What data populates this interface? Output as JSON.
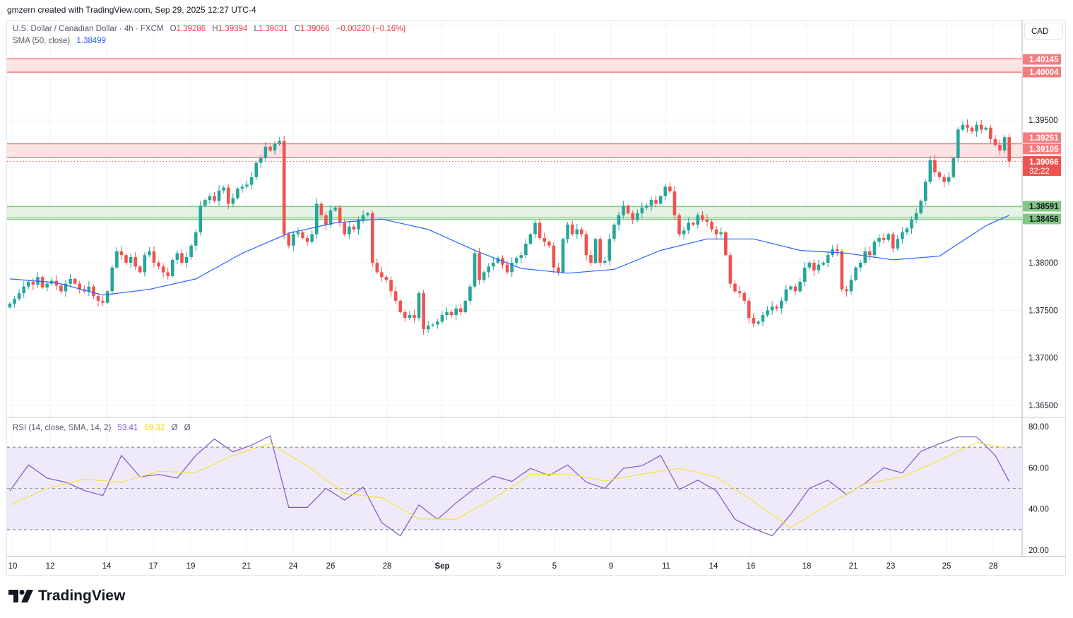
{
  "credit": "gmzern created with TradingView.com, Sep 29, 2025 12:27 UTC-4",
  "legend": {
    "symbol": "U.S. Dollar / Canadian Dollar · 4h · FXCM",
    "open_label": "O",
    "open": "1.39286",
    "high_label": "H",
    "high": "1.39394",
    "low_label": "L",
    "low": "1.39031",
    "close_label": "C",
    "close": "1.39066",
    "change": "−0.00220 (−0.16%)",
    "sma_label": "SMA (50, close)",
    "sma_value": "1.38499",
    "rsi_label": "RSI (14, close, SMA, 14, 2)",
    "rsi_value": "53.41",
    "rsi_sma_value": "69.32",
    "rsi_extra1": "Ø",
    "rsi_extra2": "Ø"
  },
  "currency_button": "CAD",
  "logo_text": "TradingView",
  "colors": {
    "up": "#26a69a",
    "down": "#ef5350",
    "sma": "#2962ff",
    "rsi": "#7e57c2",
    "rsi_sma": "#f5e23b",
    "resistance": "#f77c80",
    "support": "#81c784"
  },
  "chart_data": {
    "type": "candlestick",
    "ylim": [
      1.3625,
      1.4075
    ],
    "price_ticks": [
      "1.39500",
      "1.38000",
      "1.37500",
      "1.37000",
      "1.36500"
    ],
    "time_labels": [
      "10",
      "12",
      "14",
      "17",
      "19",
      "21",
      "24",
      "26",
      "28",
      "Sep",
      "3",
      "5",
      "9",
      "11",
      "14",
      "16",
      "18",
      "21",
      "23",
      "25",
      "28"
    ],
    "closes": [
      1.3757,
      1.3762,
      1.3768,
      1.3775,
      1.378,
      1.3777,
      1.3785,
      1.3774,
      1.3778,
      1.3781,
      1.3776,
      1.377,
      1.3778,
      1.3783,
      1.3778,
      1.3772,
      1.377,
      1.3775,
      1.3765,
      1.376,
      1.3758,
      1.377,
      1.3795,
      1.3812,
      1.3808,
      1.38,
      1.3806,
      1.3796,
      1.379,
      1.3808,
      1.3812,
      1.38,
      1.3796,
      1.379,
      1.3786,
      1.3803,
      1.381,
      1.38,
      1.3806,
      1.3818,
      1.3832,
      1.386,
      1.3866,
      1.387,
      1.3865,
      1.3876,
      1.3879,
      1.3862,
      1.3868,
      1.3878,
      1.388,
      1.3882,
      1.389,
      1.3905,
      1.391,
      1.3922,
      1.3918,
      1.3925,
      1.3928,
      1.383,
      1.3818,
      1.383,
      1.3832,
      1.3826,
      1.3822,
      1.383,
      1.3862,
      1.385,
      1.384,
      1.3855,
      1.3858,
      1.3842,
      1.383,
      1.3838,
      1.3835,
      1.3845,
      1.385,
      1.3852,
      1.38,
      1.379,
      1.3785,
      1.3782,
      1.377,
      1.376,
      1.3748,
      1.3742,
      1.3745,
      1.3742,
      1.3768,
      1.373,
      1.3734,
      1.3735,
      1.3738,
      1.3745,
      1.3748,
      1.3745,
      1.3752,
      1.3748,
      1.376,
      1.3775,
      1.381,
      1.3782,
      1.379,
      1.3796,
      1.38,
      1.3805,
      1.3798,
      1.379,
      1.38,
      1.3805,
      1.3808,
      1.382,
      1.383,
      1.3842,
      1.3826,
      1.3822,
      1.3818,
      1.3795,
      1.379,
      1.3825,
      1.384,
      1.383,
      1.3835,
      1.383,
      1.3808,
      1.38,
      1.3825,
      1.38,
      1.3802,
      1.3825,
      1.384,
      1.385,
      1.386,
      1.3852,
      1.3845,
      1.3852,
      1.3858,
      1.386,
      1.3866,
      1.3862,
      1.387,
      1.388,
      1.3875,
      1.385,
      1.383,
      1.3834,
      1.3842,
      1.384,
      1.385,
      1.3845,
      1.3843,
      1.3835,
      1.383,
      1.3832,
      1.3808,
      1.3778,
      1.377,
      1.3768,
      1.376,
      1.3742,
      1.3736,
      1.3738,
      1.3745,
      1.375,
      1.3754,
      1.3752,
      1.376,
      1.3772,
      1.3775,
      1.377,
      1.378,
      1.3795,
      1.38,
      1.3792,
      1.3798,
      1.38,
      1.3808,
      1.3814,
      1.3812,
      1.3772,
      1.377,
      1.3782,
      1.3795,
      1.38,
      1.3812,
      1.3808,
      1.3822,
      1.3826,
      1.3824,
      1.383,
      1.3815,
      1.3825,
      1.3832,
      1.3836,
      1.3845,
      1.3852,
      1.3865,
      1.3885,
      1.3908,
      1.3895,
      1.389,
      1.3885,
      1.389,
      1.391,
      1.394,
      1.3945,
      1.3942,
      1.3938,
      1.3945,
      1.394,
      1.3942,
      1.393,
      1.3924,
      1.3918,
      1.3932,
      1.39066
    ],
    "sma50": [
      1.3783,
      1.3779,
      1.3766,
      1.3772,
      1.3783,
      1.381,
      1.3831,
      1.3842,
      1.3846,
      1.3835,
      1.3813,
      1.3794,
      1.3789,
      1.3793,
      1.3813,
      1.3825,
      1.3825,
      1.3813,
      1.381,
      1.3803,
      1.3807,
      1.3839,
      1.38499
    ],
    "zones": [
      {
        "kind": "resistance",
        "top": "1.40145",
        "bottom": "1.40004"
      },
      {
        "kind": "resistance",
        "top": "1.39251",
        "bottom": "1.39105"
      },
      {
        "kind": "support",
        "top": "1.38591",
        "bottom": "1.38456"
      }
    ],
    "last_price": "1.39066",
    "countdown": "32:22",
    "rsi": {
      "ylim": [
        20,
        80
      ],
      "ticks": [
        "80.00",
        "60.00",
        "40.00",
        "20.00"
      ],
      "levels": [
        70,
        50,
        30
      ],
      "values": [
        48.8,
        61.4,
        55,
        53,
        49,
        46.5,
        66,
        55.6,
        56.8,
        55,
        66,
        74,
        67.7,
        71,
        75.5,
        40.8,
        40.8,
        50,
        44.3,
        50.6,
        33.4,
        27,
        42,
        35,
        43,
        50,
        56,
        53.4,
        59.7,
        56.3,
        61.4,
        53,
        50,
        59.7,
        61,
        66,
        49.4,
        54,
        48.8,
        35,
        30.5,
        27,
        37.4,
        50,
        54,
        47,
        52.5,
        60,
        57.5,
        68,
        71.7,
        75,
        75,
        66,
        53.41
      ],
      "sma": [
        42,
        50,
        54.5,
        53,
        58.3,
        57.7,
        66,
        71.7,
        61,
        47.6,
        45.5,
        35.2,
        35,
        45,
        56.8,
        57,
        53.6,
        57,
        59.7,
        55.6,
        43.6,
        31,
        42,
        52.3,
        55.6,
        63.6,
        72.3,
        69.32
      ]
    }
  }
}
